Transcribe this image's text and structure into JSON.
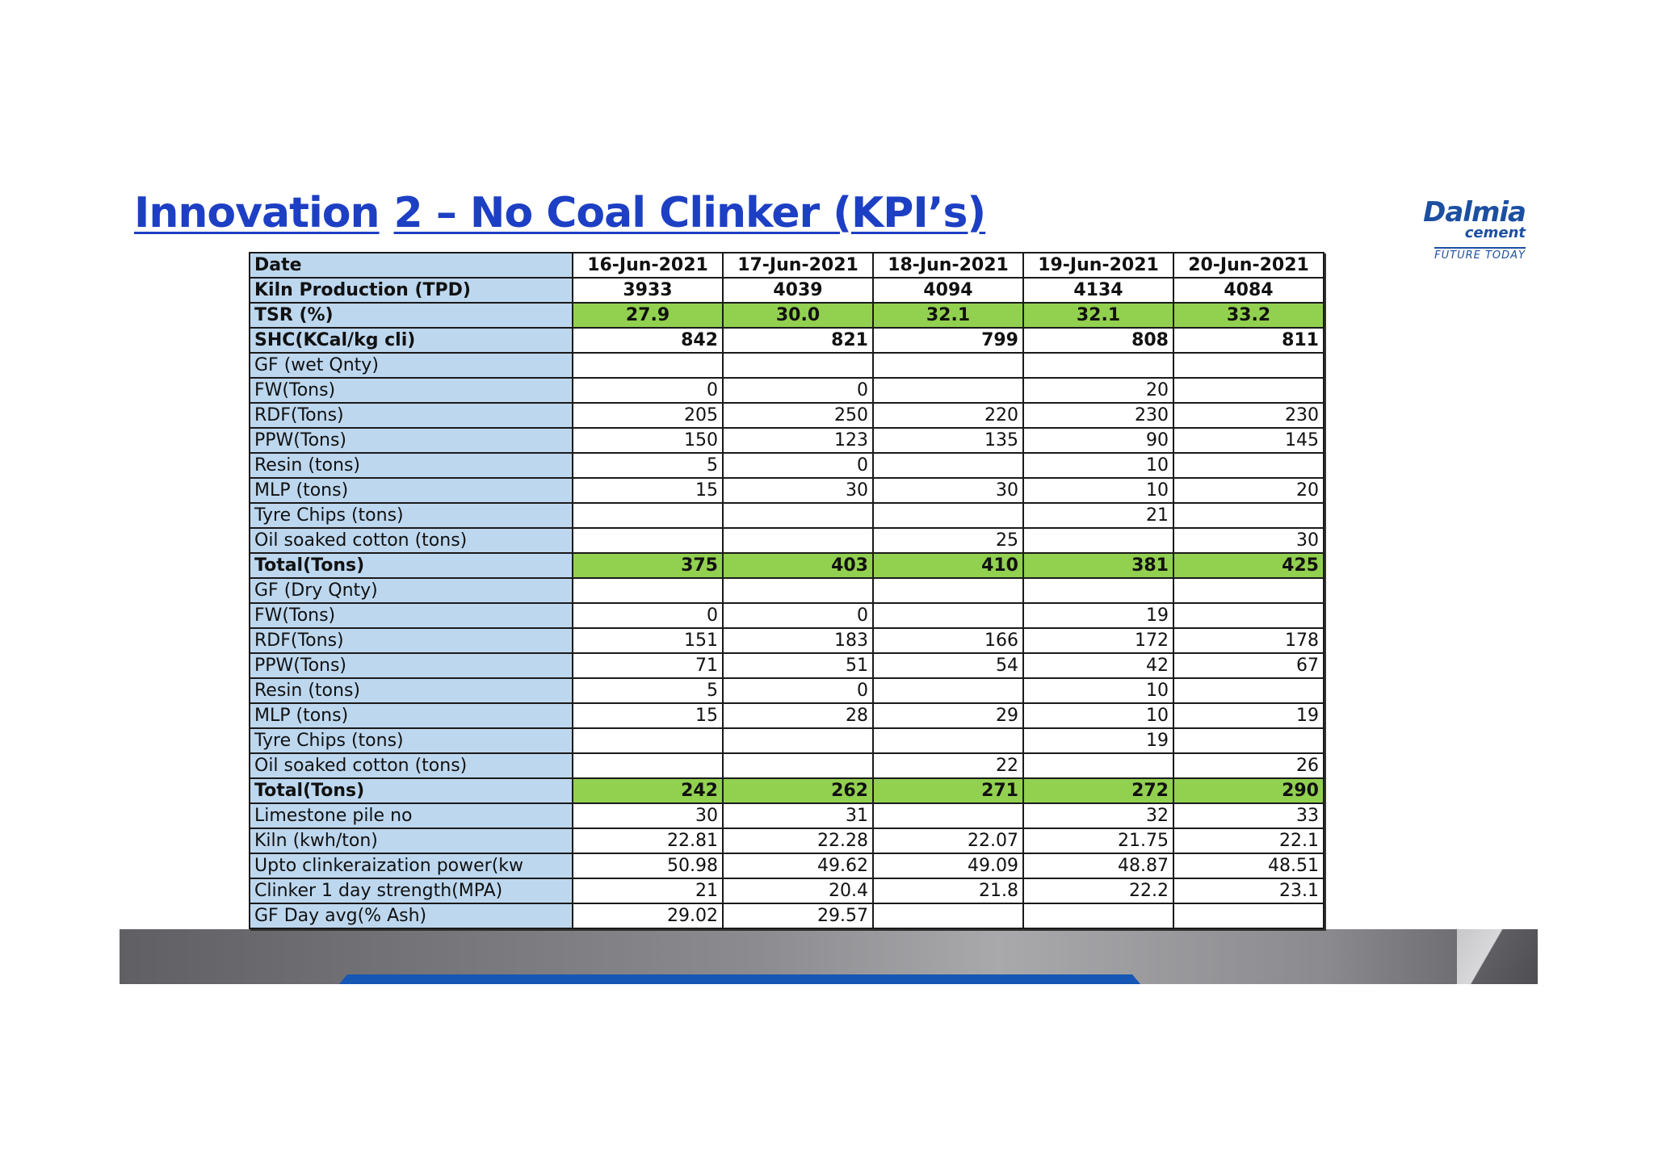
{
  "title": {
    "part1": "Innovation",
    "part2": "2 – No Coal Clinker (KPI’s)"
  },
  "logo": {
    "brand": "Dalmia",
    "sub": "cement",
    "tagline": "FUTURE TODAY",
    "color": "#1c4fa1"
  },
  "colors": {
    "title": "#1d3fc4",
    "label_bg": "#bdd7ee",
    "highlight_bg": "#92d050"
  },
  "table": {
    "header_label": "Date",
    "dates": [
      "16-Jun-2021",
      "17-Jun-2021",
      "18-Jun-2021",
      "19-Jun-2021",
      "20-Jun-2021"
    ],
    "rows": [
      {
        "label": "Kiln Production (TPD)",
        "values": [
          "3933",
          "4039",
          "4094",
          "4134",
          "4084"
        ],
        "bold": true,
        "center": true
      },
      {
        "label": "TSR (%)",
        "values": [
          "27.9",
          "30.0",
          "32.1",
          "32.1",
          "33.2"
        ],
        "bold": true,
        "center": true,
        "highlight": true
      },
      {
        "label": "SHC(KCal/kg cli)",
        "values": [
          "842",
          "821",
          "799",
          "808",
          "811"
        ],
        "bold": true
      },
      {
        "label": "GF (wet Qnty)",
        "values": [
          "",
          "",
          "",
          "",
          ""
        ]
      },
      {
        "label": "FW(Tons)",
        "values": [
          "0",
          "0",
          "",
          "20",
          ""
        ]
      },
      {
        "label": "RDF(Tons)",
        "values": [
          "205",
          "250",
          "220",
          "230",
          "230"
        ]
      },
      {
        "label": "PPW(Tons)",
        "values": [
          "150",
          "123",
          "135",
          "90",
          "145"
        ]
      },
      {
        "label": "Resin (tons)",
        "values": [
          "5",
          "0",
          "",
          "10",
          ""
        ]
      },
      {
        "label": "MLP (tons)",
        "values": [
          "15",
          "30",
          "30",
          "10",
          "20"
        ]
      },
      {
        "label": "Tyre Chips (tons)",
        "values": [
          "",
          "",
          "",
          "21",
          ""
        ]
      },
      {
        "label": "Oil soaked cotton (tons)",
        "values": [
          "",
          "",
          "25",
          "",
          "30"
        ]
      },
      {
        "label": "Total(Tons)",
        "values": [
          "375",
          "403",
          "410",
          "381",
          "425"
        ],
        "bold": true,
        "highlight": true
      },
      {
        "label": "GF (Dry Qnty)",
        "values": [
          "",
          "",
          "",
          "",
          ""
        ]
      },
      {
        "label": "FW(Tons)",
        "values": [
          "0",
          "0",
          "",
          "19",
          ""
        ]
      },
      {
        "label": "RDF(Tons)",
        "values": [
          "151",
          "183",
          "166",
          "172",
          "178"
        ]
      },
      {
        "label": "PPW(Tons)",
        "values": [
          "71",
          "51",
          "54",
          "42",
          "67"
        ]
      },
      {
        "label": "Resin (tons)",
        "values": [
          "5",
          "0",
          "",
          "10",
          ""
        ]
      },
      {
        "label": "MLP (tons)",
        "values": [
          "15",
          "28",
          "29",
          "10",
          "19"
        ]
      },
      {
        "label": "Tyre Chips (tons)",
        "values": [
          "",
          "",
          "",
          "19",
          ""
        ]
      },
      {
        "label": "Oil soaked cotton (tons)",
        "values": [
          "",
          "",
          "22",
          "",
          "26"
        ]
      },
      {
        "label": "Total(Tons)",
        "values": [
          "242",
          "262",
          "271",
          "272",
          "290"
        ],
        "bold": true,
        "highlight": true
      },
      {
        "label": "Limestone pile no",
        "values": [
          "30",
          "31",
          "",
          "32",
          "33"
        ]
      },
      {
        "label": "Kiln (kwh/ton)",
        "values": [
          "22.81",
          "22.28",
          "22.07",
          "21.75",
          "22.1"
        ]
      },
      {
        "label": "Upto clinkeraization power(kw",
        "values": [
          "50.98",
          "49.62",
          "49.09",
          "48.87",
          "48.51"
        ]
      },
      {
        "label": "Clinker 1 day strength(MPA)",
        "values": [
          "21",
          "20.4",
          "21.8",
          "22.2",
          "23.1"
        ]
      },
      {
        "label": "GF Day avg(% Ash)",
        "values": [
          "29.02",
          "29.57",
          "",
          "",
          ""
        ]
      }
    ]
  }
}
